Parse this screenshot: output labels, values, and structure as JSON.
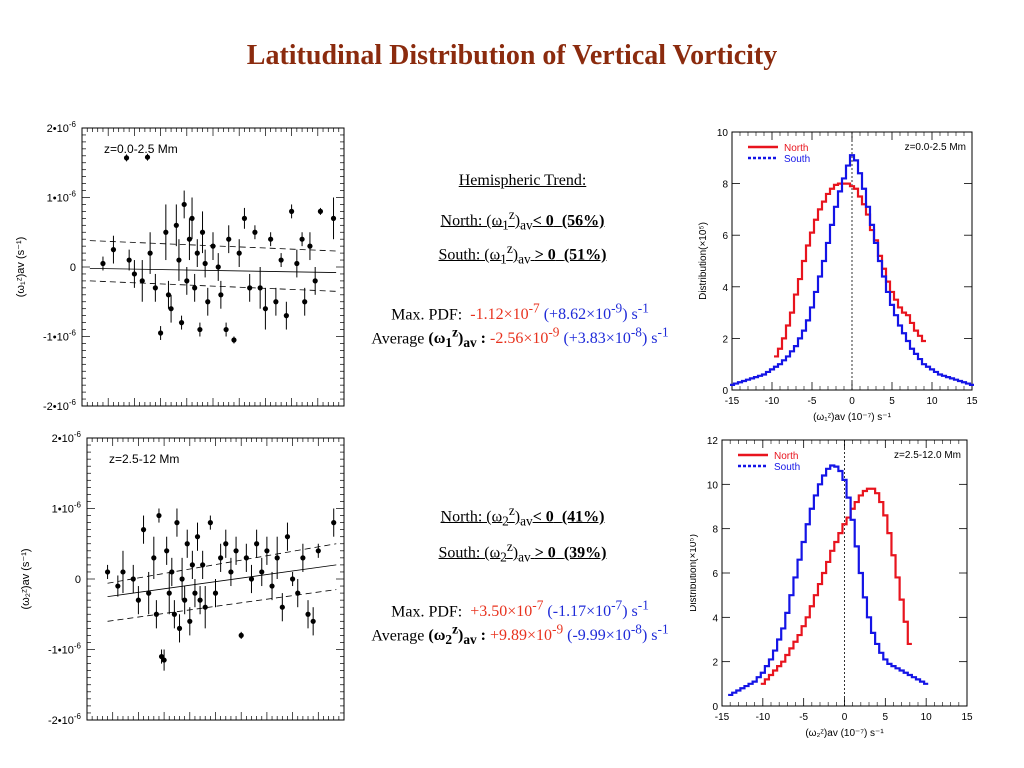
{
  "title": "Latitudinal Distribution of Vertical Vorticity",
  "text_block_1": {
    "heading": "Hemispheric Trend:",
    "north": {
      "label": "North: (ω",
      "sub1": "1",
      "sup": "z",
      "subav": "av",
      "rel": "< 0",
      "pct": "(56%)"
    },
    "south": {
      "label": "South: (ω",
      "sub1": "1",
      "sup": "z",
      "subav": "av",
      "rel": "> 0",
      "pct": "(51%)"
    },
    "max_pdf": {
      "label": "Max. PDF:",
      "val1": "-1.12×10",
      "exp1": "-7",
      "val2": "(+8.62×10",
      "exp2": "-9",
      "tail": ") s",
      "unit_exp": "-1"
    },
    "average": {
      "label": "Average ",
      "om": "(ω",
      "sub1": "1",
      "sup": "z",
      "subav": "av",
      "colon": " :",
      "val1": " -2.56×10",
      "exp1": "-9",
      "val2": " (+3.83×10",
      "exp2": "-8",
      "tail": ") s",
      "unit_exp": "-1"
    }
  },
  "text_block_2": {
    "north": {
      "label": "North: (ω",
      "sub1": "2",
      "sup": "z",
      "subav": "av",
      "rel": "< 0",
      "pct": "(41%)"
    },
    "south": {
      "label": "South: (ω",
      "sub1": "2",
      "sup": "z",
      "subav": "av",
      "rel": "> 0",
      "pct": "(39%)"
    },
    "max_pdf": {
      "label": "Max. PDF:",
      "val1": "+3.50×10",
      "exp1": "-7",
      "val2": "(-1.17×10",
      "exp2": "-7",
      "tail": ") s",
      "unit_exp": "-1"
    },
    "average": {
      "label": "Average ",
      "om": "(ω",
      "sub1": "2",
      "sup": "z",
      "subav": "av",
      "colon": " :",
      "val1": " +9.89×10",
      "exp1": "-9",
      "val2": " (-9.99×10",
      "exp2": "-8",
      "tail": ") s",
      "unit_exp": "-1"
    }
  },
  "chart_data": [
    {
      "type": "scatter",
      "annotation": "z=0.0-2.5 Mm",
      "ylabel": "(ω₁ᶻ)av (s⁻¹)",
      "ylim": [
        -2e-06,
        2e-06
      ],
      "yticks": [
        {
          "v": 2e-06,
          "label": "2•10",
          "exp": "-6"
        },
        {
          "v": 1e-06,
          "label": "1•10",
          "exp": "-6"
        },
        {
          "v": 0,
          "label": "0",
          "exp": ""
        },
        {
          "v": -1e-06,
          "label": "-1•10",
          "exp": "-6"
        },
        {
          "v": -2e-06,
          "label": "-2•10",
          "exp": "-6"
        }
      ],
      "fit_line": [
        [
          0.03,
          -2e-08
        ],
        [
          0.97,
          -8e-08
        ]
      ],
      "bound_upper": [
        [
          0.03,
          3.8e-07
        ],
        [
          0.97,
          2.3e-07
        ]
      ],
      "bound_lower": [
        [
          0.03,
          -2e-07
        ],
        [
          0.97,
          -3.5e-07
        ]
      ],
      "points": [
        [
          0.08,
          5e-08,
          1e-07
        ],
        [
          0.12,
          2.5e-07,
          2e-07
        ],
        [
          0.17,
          1.57e-06,
          5e-08
        ],
        [
          0.18,
          1e-07,
          1.5e-07
        ],
        [
          0.2,
          -1e-07,
          2e-07
        ],
        [
          0.23,
          -2e-07,
          3e-07
        ],
        [
          0.25,
          1.58e-06,
          5e-08
        ],
        [
          0.26,
          2e-07,
          3e-07
        ],
        [
          0.28,
          -3e-07,
          2e-07
        ],
        [
          0.3,
          -9.5e-07,
          1e-07
        ],
        [
          0.32,
          5e-07,
          4e-07
        ],
        [
          0.33,
          -4e-07,
          2e-07
        ],
        [
          0.34,
          -6e-07,
          2e-07
        ],
        [
          0.36,
          6e-07,
          3e-07
        ],
        [
          0.37,
          1e-07,
          3e-07
        ],
        [
          0.38,
          -8e-07,
          1e-07
        ],
        [
          0.39,
          9e-07,
          2e-07
        ],
        [
          0.4,
          -2e-07,
          2e-07
        ],
        [
          0.41,
          4e-07,
          3e-07
        ],
        [
          0.42,
          7e-07,
          3e-07
        ],
        [
          0.43,
          -3e-07,
          2e-07
        ],
        [
          0.44,
          2e-07,
          2e-07
        ],
        [
          0.45,
          -9e-07,
          1e-07
        ],
        [
          0.46,
          5e-07,
          3e-07
        ],
        [
          0.47,
          5e-08,
          2e-07
        ],
        [
          0.48,
          -5e-07,
          2e-07
        ],
        [
          0.5,
          3e-07,
          2e-07
        ],
        [
          0.52,
          0.0,
          2e-07
        ],
        [
          0.53,
          -4e-07,
          2e-07
        ],
        [
          0.55,
          -9e-07,
          1e-07
        ],
        [
          0.56,
          4e-07,
          2e-07
        ],
        [
          0.58,
          -1.05e-06,
          5e-08
        ],
        [
          0.6,
          2e-07,
          2e-07
        ],
        [
          0.62,
          7e-07,
          1.5e-07
        ],
        [
          0.64,
          -3e-07,
          2e-07
        ],
        [
          0.66,
          5e-07,
          1e-07
        ],
        [
          0.68,
          -3e-07,
          3e-07
        ],
        [
          0.7,
          -6e-07,
          3e-07
        ],
        [
          0.72,
          4e-07,
          1e-07
        ],
        [
          0.74,
          -5e-07,
          2e-07
        ],
        [
          0.76,
          1e-07,
          1e-07
        ],
        [
          0.78,
          -7e-07,
          2e-07
        ],
        [
          0.8,
          8e-07,
          1e-07
        ],
        [
          0.82,
          5e-08,
          2e-07
        ],
        [
          0.84,
          4e-07,
          1e-07
        ],
        [
          0.85,
          -5e-07,
          2e-07
        ],
        [
          0.87,
          3e-07,
          2e-07
        ],
        [
          0.89,
          -2e-07,
          2e-07
        ],
        [
          0.91,
          8e-07,
          5e-08
        ],
        [
          0.96,
          7e-07,
          3e-07
        ]
      ]
    },
    {
      "type": "scatter",
      "annotation": "z=2.5-12 Mm",
      "ylabel": "(ω₂ᶻ)av (s⁻¹)",
      "ylim": [
        -2e-06,
        2e-06
      ],
      "yticks": [
        {
          "v": 2e-06,
          "label": "2•10",
          "exp": "-6"
        },
        {
          "v": 1e-06,
          "label": "1•10",
          "exp": "-6"
        },
        {
          "v": 0,
          "label": "0",
          "exp": ""
        },
        {
          "v": -1e-06,
          "label": "-1•10",
          "exp": "-6"
        },
        {
          "v": -2e-06,
          "label": "-2•10",
          "exp": "-6"
        }
      ],
      "fit_line": [
        [
          0.08,
          -2.5e-07
        ],
        [
          0.97,
          2e-07
        ]
      ],
      "bound_upper": [
        [
          0.08,
          -6e-08
        ],
        [
          0.97,
          5e-07
        ]
      ],
      "bound_lower": [
        [
          0.08,
          -6e-07
        ],
        [
          0.97,
          -1.5e-07
        ]
      ],
      "points": [
        [
          0.08,
          1e-07,
          1e-07
        ],
        [
          0.12,
          -1e-07,
          1.5e-07
        ],
        [
          0.14,
          1e-07,
          3e-07
        ],
        [
          0.18,
          0.0,
          2e-07
        ],
        [
          0.2,
          -3e-07,
          2e-07
        ],
        [
          0.22,
          7e-07,
          2e-07
        ],
        [
          0.24,
          -2e-07,
          3e-07
        ],
        [
          0.26,
          3e-07,
          3e-07
        ],
        [
          0.27,
          -5e-07,
          2e-07
        ],
        [
          0.28,
          9e-07,
          1e-07
        ],
        [
          0.29,
          -1.1e-06,
          1e-07
        ],
        [
          0.3,
          -1.15e-06,
          1.5e-07
        ],
        [
          0.31,
          4e-07,
          2e-07
        ],
        [
          0.32,
          -2e-07,
          3e-07
        ],
        [
          0.33,
          1e-07,
          2e-07
        ],
        [
          0.34,
          -5e-07,
          2e-07
        ],
        [
          0.35,
          8e-07,
          2e-07
        ],
        [
          0.36,
          -7e-07,
          2e-07
        ],
        [
          0.37,
          0.0,
          3e-07
        ],
        [
          0.38,
          -3e-07,
          2e-07
        ],
        [
          0.39,
          5e-07,
          2e-07
        ],
        [
          0.4,
          -6e-07,
          2e-07
        ],
        [
          0.41,
          2e-07,
          2e-07
        ],
        [
          0.42,
          -2e-07,
          2e-07
        ],
        [
          0.43,
          6e-07,
          2e-07
        ],
        [
          0.44,
          -3e-07,
          2e-07
        ],
        [
          0.45,
          2e-07,
          2e-07
        ],
        [
          0.46,
          -4e-07,
          3e-07
        ],
        [
          0.48,
          8e-07,
          1e-07
        ],
        [
          0.5,
          -2e-07,
          2e-07
        ],
        [
          0.52,
          3e-07,
          2e-07
        ],
        [
          0.54,
          5e-07,
          2e-07
        ],
        [
          0.56,
          1e-07,
          2e-07
        ],
        [
          0.58,
          4e-07,
          2e-07
        ],
        [
          0.6,
          -8e-07,
          5e-08
        ],
        [
          0.62,
          3e-07,
          2e-07
        ],
        [
          0.64,
          0.0,
          2e-07
        ],
        [
          0.66,
          5e-07,
          2e-07
        ],
        [
          0.68,
          1e-07,
          2e-07
        ],
        [
          0.7,
          4e-07,
          2e-07
        ],
        [
          0.72,
          -1e-07,
          2e-07
        ],
        [
          0.74,
          3e-07,
          3e-07
        ],
        [
          0.76,
          -4e-07,
          2e-07
        ],
        [
          0.78,
          6e-07,
          2e-07
        ],
        [
          0.8,
          0.0,
          1e-07
        ],
        [
          0.82,
          -2e-07,
          2e-07
        ],
        [
          0.84,
          3e-07,
          2e-07
        ],
        [
          0.86,
          -5e-07,
          2e-07
        ],
        [
          0.88,
          -6e-07,
          2e-07
        ],
        [
          0.9,
          4e-07,
          1e-07
        ],
        [
          0.96,
          8e-07,
          2e-07
        ]
      ]
    },
    {
      "type": "line",
      "annotation": "z=0.0-2.5 Mm",
      "xlabel": "(ω₁ᶻ)av (10⁻⁷) s⁻¹",
      "ylabel": "Distribution(×10⁵)",
      "xlim": [
        -15,
        15
      ],
      "ylim": [
        0,
        10
      ],
      "xticks": [
        -15,
        -10,
        -5,
        0,
        5,
        10,
        15
      ],
      "yticks": [
        0,
        2,
        4,
        6,
        8,
        10
      ],
      "legend": "top-left",
      "series": [
        {
          "name": "North",
          "color": "#e8141e",
          "x": [
            -9.5,
            -9,
            -8.5,
            -8,
            -7.5,
            -7,
            -6.5,
            -6,
            -5.5,
            -5,
            -4.5,
            -4,
            -3.5,
            -3,
            -2.5,
            -2,
            -1.5,
            -1,
            -0.5,
            0,
            0.5,
            1,
            1.5,
            2,
            2.5,
            3,
            3.5,
            4,
            4.5,
            5,
            5.5,
            6,
            6.5,
            7,
            7.5,
            8,
            8.5,
            9
          ],
          "y": [
            1.3,
            1.6,
            2.0,
            2.5,
            3.0,
            3.7,
            4.3,
            5.0,
            5.6,
            6.1,
            6.6,
            7.0,
            7.3,
            7.6,
            7.8,
            7.95,
            8.0,
            8.0,
            8.0,
            7.9,
            7.8,
            7.5,
            7.2,
            6.8,
            6.2,
            5.8,
            5.2,
            4.7,
            4.2,
            3.8,
            3.5,
            3.2,
            3.0,
            2.9,
            2.6,
            2.3,
            2.1,
            1.9
          ]
        },
        {
          "name": "South",
          "color": "#1414e6",
          "x": [
            -15,
            -14.5,
            -14,
            -13.5,
            -13,
            -12.5,
            -12,
            -11.5,
            -11,
            -10.5,
            -10,
            -9.5,
            -9,
            -8.5,
            -8,
            -7.5,
            -7,
            -6.5,
            -6,
            -5.5,
            -5,
            -4.5,
            -4,
            -3.5,
            -3,
            -2.5,
            -2,
            -1.5,
            -1,
            -0.5,
            0,
            0.5,
            1,
            1.5,
            2,
            2.5,
            3,
            3.5,
            4,
            4.5,
            5,
            5.5,
            6,
            6.5,
            7,
            7.5,
            8,
            8.5,
            9,
            9.5,
            10,
            10.5,
            11,
            11.5,
            12,
            12.5,
            13,
            13.5,
            14,
            14.5,
            15
          ],
          "y": [
            0.2,
            0.25,
            0.3,
            0.35,
            0.4,
            0.45,
            0.5,
            0.55,
            0.6,
            0.7,
            0.8,
            0.9,
            1.0,
            1.15,
            1.3,
            1.5,
            1.7,
            2.0,
            2.3,
            2.7,
            3.2,
            3.8,
            4.4,
            5.0,
            5.7,
            6.4,
            7.1,
            7.7,
            8.2,
            8.7,
            9.1,
            8.9,
            8.4,
            7.8,
            7.1,
            6.4,
            5.7,
            5.0,
            4.4,
            3.8,
            3.3,
            2.9,
            2.5,
            2.2,
            1.9,
            1.6,
            1.4,
            1.2,
            1.0,
            0.9,
            0.8,
            0.7,
            0.6,
            0.55,
            0.5,
            0.45,
            0.4,
            0.35,
            0.3,
            0.25,
            0.2
          ]
        }
      ]
    },
    {
      "type": "line",
      "annotation": "z=2.5-12.0 Mm",
      "xlabel": "(ω₂ᶻ)av (10⁻⁷) s⁻¹",
      "ylabel": "Distribution(×10⁵)",
      "xlim": [
        -15,
        15
      ],
      "ylim": [
        0,
        12
      ],
      "xticks": [
        -15,
        -10,
        -5,
        0,
        5,
        10,
        15
      ],
      "yticks": [
        0,
        2,
        4,
        6,
        8,
        10,
        12
      ],
      "legend": "top-left",
      "series": [
        {
          "name": "North",
          "color": "#e8141e",
          "x": [
            -10,
            -9.5,
            -9,
            -8.5,
            -8,
            -7.5,
            -7,
            -6.5,
            -6,
            -5.5,
            -5,
            -4.5,
            -4,
            -3.5,
            -3,
            -2.5,
            -2,
            -1.5,
            -1,
            -0.5,
            0,
            0.5,
            1,
            1.5,
            2,
            2.5,
            3,
            3.5,
            4,
            4.5,
            5,
            5.5,
            6,
            6.5,
            7,
            7.5,
            8
          ],
          "y": [
            1.0,
            1.2,
            1.4,
            1.6,
            1.8,
            2.0,
            2.3,
            2.6,
            2.9,
            3.2,
            3.6,
            4.0,
            4.5,
            5.0,
            5.5,
            6.0,
            6.5,
            7.0,
            7.4,
            7.8,
            8.2,
            8.5,
            8.9,
            9.2,
            9.5,
            9.7,
            9.8,
            9.8,
            9.6,
            9.2,
            8.6,
            7.8,
            6.8,
            5.8,
            4.8,
            3.8,
            2.8
          ]
        },
        {
          "name": "South",
          "color": "#1414e6",
          "x": [
            -14,
            -13.5,
            -13,
            -12.5,
            -12,
            -11.5,
            -11,
            -10.5,
            -10,
            -9.5,
            -9,
            -8.5,
            -8,
            -7.5,
            -7,
            -6.5,
            -6,
            -5.5,
            -5,
            -4.5,
            -4,
            -3.5,
            -3,
            -2.5,
            -2,
            -1.5,
            -1,
            -0.5,
            0,
            0.5,
            1,
            1.5,
            2,
            2.5,
            3,
            3.5,
            4,
            4.5,
            5,
            5.5,
            6,
            6.5,
            7,
            7.5,
            8,
            8.5,
            9,
            9.5,
            10
          ],
          "y": [
            0.5,
            0.6,
            0.7,
            0.8,
            0.9,
            1.0,
            1.1,
            1.3,
            1.5,
            1.8,
            2.1,
            2.5,
            3.0,
            3.5,
            4.2,
            5.0,
            5.8,
            6.6,
            7.4,
            8.2,
            8.9,
            9.5,
            10.0,
            10.4,
            10.7,
            10.85,
            10.8,
            10.6,
            10.2,
            9.4,
            8.4,
            7.2,
            6.0,
            4.9,
            4.0,
            3.3,
            2.8,
            2.4,
            2.1,
            1.9,
            1.8,
            1.7,
            1.6,
            1.5,
            1.4,
            1.3,
            1.2,
            1.1,
            1.0
          ]
        }
      ]
    }
  ]
}
